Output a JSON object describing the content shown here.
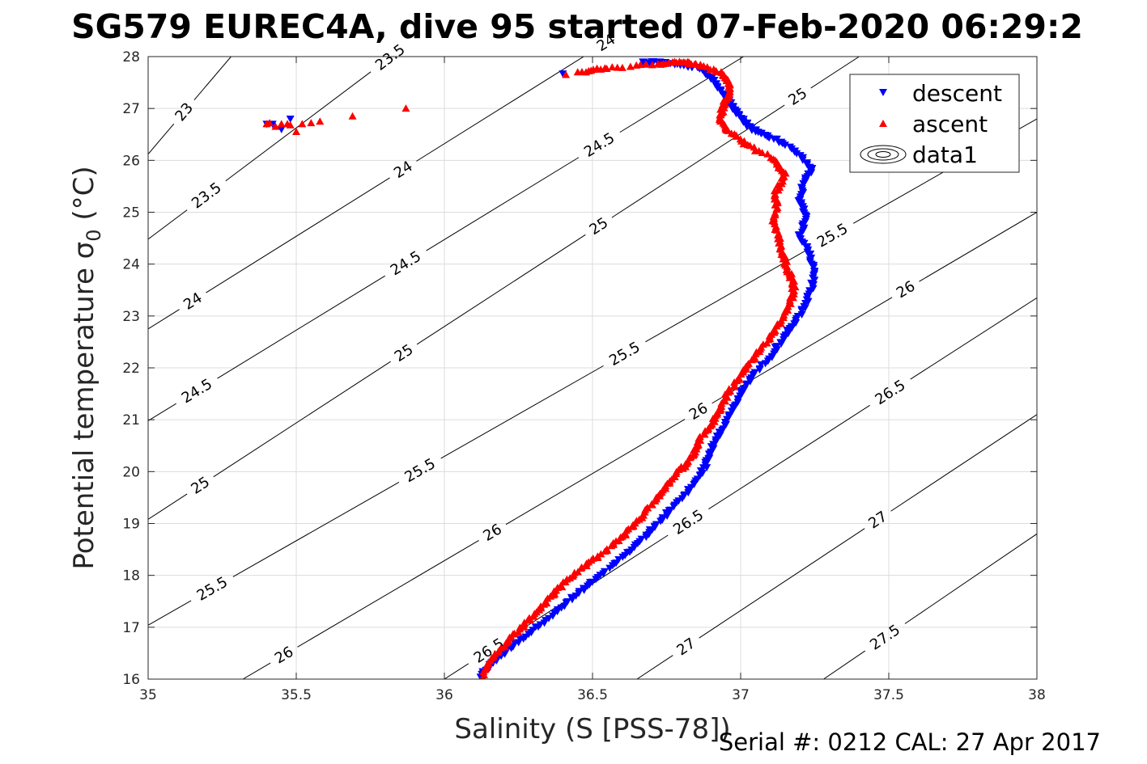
{
  "title": "SG579 EUREC4A, dive 95 started 07-Feb-2020 06:29:2",
  "footer": "Serial #: 0212  CAL: 27 Apr 2017",
  "chart_data": {
    "type": "scatter",
    "xlabel": "Salinity (S [PSS-78])",
    "ylabel": "Potential temperature σ0 (°C)",
    "ylabel_parts": {
      "main": "Potential temperature ",
      "sigma": "σ",
      "sub": "0",
      "unit": " (°C)"
    },
    "xlim": [
      35,
      38
    ],
    "ylim": [
      16,
      28
    ],
    "xticks": [
      35,
      35.5,
      36,
      36.5,
      37,
      37.5,
      38
    ],
    "xtick_labels": [
      "35",
      "35.5",
      "36",
      "36.5",
      "37",
      "37.5",
      "38"
    ],
    "yticks": [
      16,
      17,
      18,
      19,
      20,
      21,
      22,
      23,
      24,
      25,
      26,
      27,
      28
    ],
    "ytick_labels": [
      "16",
      "17",
      "18",
      "19",
      "20",
      "21",
      "22",
      "23",
      "24",
      "25",
      "26",
      "27",
      "28"
    ],
    "grid": true,
    "legend_position": "top-right",
    "legend": [
      "descent",
      "ascent",
      "data1"
    ],
    "colors": {
      "descent": "#0000ff",
      "ascent": "#ff0000",
      "contour": "#000000",
      "grid": "#dcdcdc"
    },
    "contours": {
      "levels": [
        23,
        23.5,
        24,
        24.5,
        25,
        25.5,
        26,
        26.5,
        27,
        27.5
      ],
      "lines": [
        {
          "level": 23,
          "x0": 35,
          "y0": 26.12,
          "x1": 35.28,
          "y1": 28,
          "label": "23",
          "labels_at": [
            [
              35.19,
              26.6
            ]
          ]
        },
        {
          "level": 23.5,
          "x0": 35,
          "y0": 24.48,
          "x1": 35.82,
          "y1": 28,
          "label": "23.5",
          "labels_at": [
            [
              35.2,
              25.3
            ],
            [
              35.96,
              26.9
            ]
          ]
        },
        {
          "level": 24,
          "x0": 35,
          "y0": 22.75,
          "x1": 36.47,
          "y1": 28,
          "label": "24",
          "labels_at": [
            [
              35.16,
              23.2
            ],
            [
              35.94,
              25.1
            ],
            [
              36.69,
              26.95
            ]
          ]
        },
        {
          "level": 24.5,
          "x0": 35,
          "y0": 20.98,
          "x1": 37.01,
          "y1": 28,
          "label": "24.5",
          "labels_at": [
            [
              35.17,
              21.5
            ],
            [
              35.93,
              23.45
            ],
            [
              36.63,
              25.3
            ]
          ]
        },
        {
          "level": 25,
          "x0": 35,
          "y0": 19.08,
          "x1": 37.4,
          "y1": 28,
          "label": "25",
          "labels_at": [
            [
              35.18,
              19.7
            ],
            [
              35.93,
              21.7
            ],
            [
              36.65,
              23.6
            ],
            [
              37.39,
              25.5
            ]
          ]
        },
        {
          "level": 25.5,
          "x0": 35,
          "y0": 17.04,
          "x1": 38,
          "y1": 26.8,
          "label": "25.5",
          "labels_at": [
            [
              35.21,
              17.8
            ],
            [
              35.93,
              19.9
            ],
            [
              36.64,
              21.95
            ],
            [
              37.38,
              23.85
            ]
          ]
        },
        {
          "level": 26,
          "x0": 35.32,
          "y0": 16,
          "x1": 38,
          "y1": 25.0,
          "label": "26",
          "labels_at": [
            [
              35.46,
              16.45
            ],
            [
              36.17,
              18.75
            ],
            [
              36.9,
              20.75
            ],
            [
              37.62,
              22.9
            ]
          ]
        },
        {
          "level": 26.5,
          "x0": 36.0,
          "y0": 16,
          "x1": 38,
          "y1": 23.35,
          "label": "26.5",
          "labels_at": [
            [
              36.15,
              16.55
            ],
            [
              36.86,
              18.7
            ],
            [
              37.57,
              20.95
            ]
          ]
        },
        {
          "level": 27,
          "x0": 36.65,
          "y0": 16,
          "x1": 38,
          "y1": 21.1,
          "label": "27",
          "labels_at": [
            [
              36.83,
              16.5
            ],
            [
              37.5,
              18.75
            ]
          ]
        },
        {
          "level": 27.5,
          "x0": 37.28,
          "y0": 16,
          "x1": 38,
          "y1": 18.8,
          "label": "27.5",
          "labels_at": [
            [
              37.47,
              16.95
            ]
          ]
        }
      ]
    },
    "series": [
      {
        "name": "descent",
        "marker": "triangle-down",
        "path": [
          [
            36.12,
            16.05
          ],
          [
            36.16,
            16.3
          ],
          [
            36.22,
            16.6
          ],
          [
            36.3,
            16.95
          ],
          [
            36.38,
            17.3
          ],
          [
            36.45,
            17.65
          ],
          [
            36.52,
            17.95
          ],
          [
            36.6,
            18.35
          ],
          [
            36.67,
            18.7
          ],
          [
            36.72,
            19.0
          ],
          [
            36.78,
            19.35
          ],
          [
            36.84,
            19.75
          ],
          [
            36.88,
            20.1
          ],
          [
            36.9,
            20.4
          ],
          [
            36.93,
            20.75
          ],
          [
            36.97,
            21.15
          ],
          [
            37.0,
            21.5
          ],
          [
            37.04,
            21.85
          ],
          [
            37.1,
            22.2
          ],
          [
            37.14,
            22.55
          ],
          [
            37.18,
            22.85
          ],
          [
            37.22,
            23.2
          ],
          [
            37.24,
            23.55
          ],
          [
            37.25,
            23.85
          ],
          [
            37.23,
            24.2
          ],
          [
            37.2,
            24.55
          ],
          [
            37.22,
            24.9
          ],
          [
            37.2,
            25.2
          ],
          [
            37.21,
            25.5
          ],
          [
            37.24,
            25.85
          ],
          [
            37.18,
            26.2
          ],
          [
            37.1,
            26.45
          ],
          [
            37.04,
            26.6
          ],
          [
            37.0,
            26.8
          ],
          [
            36.97,
            27.05
          ],
          [
            36.94,
            27.3
          ],
          [
            36.9,
            27.6
          ],
          [
            36.85,
            27.8
          ],
          [
            36.75,
            27.88
          ],
          [
            36.67,
            27.9
          ]
        ],
        "extra": [
          [
            36.4,
            27.67
          ],
          [
            35.4,
            26.7
          ],
          [
            35.42,
            26.7
          ],
          [
            35.45,
            26.6
          ],
          [
            35.48,
            26.8
          ]
        ]
      },
      {
        "name": "ascent",
        "marker": "triangle-up",
        "path": [
          [
            36.13,
            16.05
          ],
          [
            36.16,
            16.4
          ],
          [
            36.22,
            16.75
          ],
          [
            36.27,
            17.05
          ],
          [
            36.32,
            17.35
          ],
          [
            36.37,
            17.65
          ],
          [
            36.42,
            17.95
          ],
          [
            36.49,
            18.25
          ],
          [
            36.56,
            18.55
          ],
          [
            36.62,
            18.85
          ],
          [
            36.67,
            19.15
          ],
          [
            36.71,
            19.45
          ],
          [
            36.75,
            19.75
          ],
          [
            36.8,
            20.05
          ],
          [
            36.84,
            20.3
          ],
          [
            36.86,
            20.6
          ],
          [
            36.9,
            20.9
          ],
          [
            36.93,
            21.2
          ],
          [
            36.96,
            21.55
          ],
          [
            37.01,
            21.9
          ],
          [
            37.05,
            22.25
          ],
          [
            37.1,
            22.6
          ],
          [
            37.14,
            22.95
          ],
          [
            37.17,
            23.3
          ],
          [
            37.18,
            23.6
          ],
          [
            37.16,
            23.9
          ],
          [
            37.14,
            24.2
          ],
          [
            37.13,
            24.5
          ],
          [
            37.11,
            24.8
          ],
          [
            37.12,
            25.1
          ],
          [
            37.12,
            25.4
          ],
          [
            37.15,
            25.7
          ],
          [
            37.12,
            26.0
          ],
          [
            37.02,
            26.3
          ],
          [
            36.96,
            26.55
          ],
          [
            36.93,
            26.8
          ],
          [
            36.94,
            27.05
          ],
          [
            36.96,
            27.3
          ],
          [
            36.96,
            27.5
          ],
          [
            36.93,
            27.7
          ],
          [
            36.85,
            27.85
          ],
          [
            36.8,
            27.9
          ],
          [
            36.72,
            27.85
          ],
          [
            36.55,
            27.78
          ],
          [
            36.45,
            27.7
          ]
        ],
        "extra": [
          [
            36.41,
            27.65
          ],
          [
            35.87,
            27.0
          ],
          [
            35.69,
            26.85
          ],
          [
            35.58,
            26.75
          ],
          [
            35.55,
            26.72
          ],
          [
            35.52,
            26.7
          ],
          [
            35.48,
            26.68
          ],
          [
            35.45,
            26.7
          ],
          [
            35.43,
            26.65
          ],
          [
            35.41,
            26.72
          ],
          [
            35.5,
            26.55
          ],
          [
            35.47,
            26.7
          ],
          [
            35.4,
            26.7
          ]
        ]
      }
    ]
  }
}
